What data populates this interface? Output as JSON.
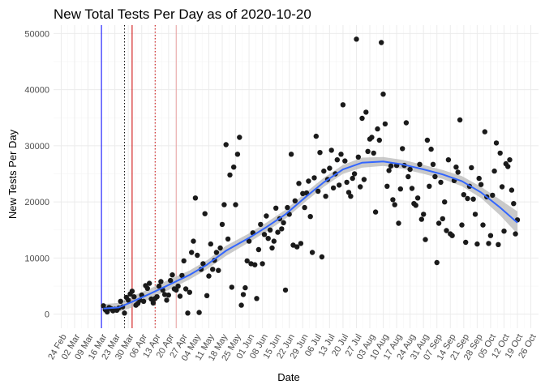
{
  "chart_data": {
    "type": "scatter",
    "title": "New Total Tests Per Day as of 2020-10-20",
    "xlabel": "Date",
    "ylabel": "New Tests Per Day",
    "xlim": [
      "2020-02-20",
      "2020-10-30"
    ],
    "ylim": [
      -2500,
      51500
    ],
    "grid": true,
    "legend": "none",
    "x_ticks": [
      {
        "date": "2020-02-24",
        "label": "24 Feb"
      },
      {
        "date": "2020-03-02",
        "label": "02 Mar"
      },
      {
        "date": "2020-03-09",
        "label": "09 Mar"
      },
      {
        "date": "2020-03-16",
        "label": "16 Mar"
      },
      {
        "date": "2020-03-23",
        "label": "23 Mar"
      },
      {
        "date": "2020-03-30",
        "label": "30 Mar"
      },
      {
        "date": "2020-04-06",
        "label": "06 Apr"
      },
      {
        "date": "2020-04-13",
        "label": "13 Apr"
      },
      {
        "date": "2020-04-20",
        "label": "20 Apr"
      },
      {
        "date": "2020-04-27",
        "label": "27 Apr"
      },
      {
        "date": "2020-05-04",
        "label": "04 May"
      },
      {
        "date": "2020-05-11",
        "label": "11 May"
      },
      {
        "date": "2020-05-18",
        "label": "18 May"
      },
      {
        "date": "2020-05-25",
        "label": "25 May"
      },
      {
        "date": "2020-06-01",
        "label": "01 Jun"
      },
      {
        "date": "2020-06-08",
        "label": "08 Jun"
      },
      {
        "date": "2020-06-15",
        "label": "15 Jun"
      },
      {
        "date": "2020-06-22",
        "label": "22 Jun"
      },
      {
        "date": "2020-06-29",
        "label": "29 Jun"
      },
      {
        "date": "2020-07-06",
        "label": "06 Jul"
      },
      {
        "date": "2020-07-13",
        "label": "13 Jul"
      },
      {
        "date": "2020-07-20",
        "label": "20 Jul"
      },
      {
        "date": "2020-07-27",
        "label": "27 Jul"
      },
      {
        "date": "2020-08-03",
        "label": "03 Aug"
      },
      {
        "date": "2020-08-10",
        "label": "10 Aug"
      },
      {
        "date": "2020-08-17",
        "label": "17 Aug"
      },
      {
        "date": "2020-08-24",
        "label": "24 Aug"
      },
      {
        "date": "2020-08-31",
        "label": "31 Aug"
      },
      {
        "date": "2020-09-07",
        "label": "07 Sep"
      },
      {
        "date": "2020-09-14",
        "label": "14 Sep"
      },
      {
        "date": "2020-09-21",
        "label": "21 Sep"
      },
      {
        "date": "2020-09-28",
        "label": "28 Sep"
      },
      {
        "date": "2020-10-05",
        "label": "05 Oct"
      },
      {
        "date": "2020-10-12",
        "label": "12 Oct"
      },
      {
        "date": "2020-10-19",
        "label": "19 Oct"
      },
      {
        "date": "2020-10-26",
        "label": "26 Oct"
      }
    ],
    "y_ticks": [
      {
        "value": 0,
        "label": "0"
      },
      {
        "value": 10000,
        "label": "10000"
      },
      {
        "value": 20000,
        "label": "20000"
      },
      {
        "value": 30000,
        "label": "30000"
      },
      {
        "value": 40000,
        "label": "40000"
      },
      {
        "value": 50000,
        "label": "50000"
      }
    ],
    "reference_lines": [
      {
        "date": "2020-03-16",
        "color": "#0000ff",
        "style": "solid"
      },
      {
        "date": "2020-03-28",
        "color": "#000000",
        "style": "dotted"
      },
      {
        "date": "2020-04-01",
        "color": "#cc0000",
        "style": "solid"
      },
      {
        "date": "2020-04-13",
        "color": "#cc0000",
        "style": "dotted"
      },
      {
        "date": "2020-04-24",
        "color": "#e8a0a0",
        "style": "solid"
      }
    ],
    "points": [
      [
        "2020-03-17",
        1500
      ],
      [
        "2020-03-18",
        800
      ],
      [
        "2020-03-19",
        400
      ],
      [
        "2020-03-20",
        1200
      ],
      [
        "2020-03-21",
        1000
      ],
      [
        "2020-03-22",
        600
      ],
      [
        "2020-03-23",
        900
      ],
      [
        "2020-03-24",
        700
      ],
      [
        "2020-03-25",
        1100
      ],
      [
        "2020-03-26",
        2300
      ],
      [
        "2020-03-27",
        1300
      ],
      [
        "2020-03-28",
        200
      ],
      [
        "2020-03-29",
        3000
      ],
      [
        "2020-03-30",
        2500
      ],
      [
        "2020-03-31",
        3600
      ],
      [
        "2020-04-01",
        4100
      ],
      [
        "2020-04-02",
        3100
      ],
      [
        "2020-04-03",
        1600
      ],
      [
        "2020-04-04",
        1900
      ],
      [
        "2020-04-05",
        2500
      ],
      [
        "2020-04-06",
        3400
      ],
      [
        "2020-04-07",
        2300
      ],
      [
        "2020-04-08",
        5100
      ],
      [
        "2020-04-09",
        4600
      ],
      [
        "2020-04-10",
        5500
      ],
      [
        "2020-04-11",
        2700
      ],
      [
        "2020-04-12",
        2000
      ],
      [
        "2020-04-13",
        2800
      ],
      [
        "2020-04-14",
        3100
      ],
      [
        "2020-04-15",
        5000
      ],
      [
        "2020-04-16",
        5800
      ],
      [
        "2020-04-17",
        4300
      ],
      [
        "2020-04-18",
        3500
      ],
      [
        "2020-04-19",
        2500
      ],
      [
        "2020-04-20",
        3400
      ],
      [
        "2020-04-21",
        6000
      ],
      [
        "2020-04-22",
        7000
      ],
      [
        "2020-04-23",
        4500
      ],
      [
        "2020-04-24",
        4300
      ],
      [
        "2020-04-25",
        5000
      ],
      [
        "2020-04-26",
        3200
      ],
      [
        "2020-04-27",
        6900
      ],
      [
        "2020-04-28",
        9500
      ],
      [
        "2020-04-29",
        4500
      ],
      [
        "2020-04-30",
        200
      ],
      [
        "2020-05-01",
        3900
      ],
      [
        "2020-05-02",
        11000
      ],
      [
        "2020-05-03",
        13000
      ],
      [
        "2020-05-04",
        20700
      ],
      [
        "2020-05-05",
        10500
      ],
      [
        "2020-05-06",
        300
      ],
      [
        "2020-05-07",
        8000
      ],
      [
        "2020-05-08",
        9000
      ],
      [
        "2020-05-09",
        17900
      ],
      [
        "2020-05-10",
        3300
      ],
      [
        "2020-05-11",
        6800
      ],
      [
        "2020-05-12",
        12500
      ],
      [
        "2020-05-13",
        8000
      ],
      [
        "2020-05-14",
        9600
      ],
      [
        "2020-05-15",
        11000
      ],
      [
        "2020-05-16",
        7800
      ],
      [
        "2020-05-17",
        11800
      ],
      [
        "2020-05-18",
        16000
      ],
      [
        "2020-05-19",
        19500
      ],
      [
        "2020-05-20",
        30200
      ],
      [
        "2020-05-21",
        13400
      ],
      [
        "2020-05-22",
        24800
      ],
      [
        "2020-05-23",
        4800
      ],
      [
        "2020-05-24",
        26200
      ],
      [
        "2020-05-25",
        19500
      ],
      [
        "2020-05-26",
        28500
      ],
      [
        "2020-05-27",
        31500
      ],
      [
        "2020-05-28",
        1600
      ],
      [
        "2020-05-29",
        3500
      ],
      [
        "2020-05-30",
        4700
      ],
      [
        "2020-05-31",
        9500
      ],
      [
        "2020-06-01",
        13000
      ],
      [
        "2020-06-02",
        9000
      ],
      [
        "2020-06-03",
        14500
      ],
      [
        "2020-06-04",
        8800
      ],
      [
        "2020-06-05",
        2800
      ],
      [
        "2020-06-06",
        11500
      ],
      [
        "2020-06-07",
        16000
      ],
      [
        "2020-06-08",
        9000
      ],
      [
        "2020-06-09",
        14200
      ],
      [
        "2020-06-10",
        17500
      ],
      [
        "2020-06-11",
        13500
      ],
      [
        "2020-06-12",
        15000
      ],
      [
        "2020-06-13",
        11800
      ],
      [
        "2020-06-14",
        13000
      ],
      [
        "2020-06-15",
        18900
      ],
      [
        "2020-06-16",
        14600
      ],
      [
        "2020-06-17",
        17000
      ],
      [
        "2020-06-18",
        15200
      ],
      [
        "2020-06-19",
        16300
      ],
      [
        "2020-06-20",
        4300
      ],
      [
        "2020-06-21",
        19000
      ],
      [
        "2020-06-22",
        17800
      ],
      [
        "2020-06-23",
        28500
      ],
      [
        "2020-06-24",
        12300
      ],
      [
        "2020-06-25",
        20200
      ],
      [
        "2020-06-26",
        12000
      ],
      [
        "2020-06-27",
        23300
      ],
      [
        "2020-06-28",
        12600
      ],
      [
        "2020-06-29",
        21500
      ],
      [
        "2020-06-30",
        19000
      ],
      [
        "2020-07-01",
        21600
      ],
      [
        "2020-07-02",
        23700
      ],
      [
        "2020-07-03",
        17400
      ],
      [
        "2020-07-04",
        11000
      ],
      [
        "2020-07-05",
        24300
      ],
      [
        "2020-07-06",
        31700
      ],
      [
        "2020-07-07",
        21900
      ],
      [
        "2020-07-08",
        28800
      ],
      [
        "2020-07-09",
        10200
      ],
      [
        "2020-07-10",
        25500
      ],
      [
        "2020-07-11",
        21000
      ],
      [
        "2020-07-12",
        24000
      ],
      [
        "2020-07-13",
        26000
      ],
      [
        "2020-07-14",
        29200
      ],
      [
        "2020-07-15",
        22500
      ],
      [
        "2020-07-16",
        25000
      ],
      [
        "2020-07-17",
        27500
      ],
      [
        "2020-07-18",
        23000
      ],
      [
        "2020-07-19",
        28500
      ],
      [
        "2020-07-20",
        37300
      ],
      [
        "2020-07-21",
        27300
      ],
      [
        "2020-07-22",
        23500
      ],
      [
        "2020-07-23",
        21700
      ],
      [
        "2020-07-24",
        21000
      ],
      [
        "2020-07-25",
        24200
      ],
      [
        "2020-07-26",
        25000
      ],
      [
        "2020-07-27",
        49000
      ],
      [
        "2020-07-28",
        28000
      ],
      [
        "2020-07-29",
        22700
      ],
      [
        "2020-07-30",
        34900
      ],
      [
        "2020-07-31",
        24000
      ],
      [
        "2020-08-01",
        36000
      ],
      [
        "2020-08-02",
        29000
      ],
      [
        "2020-08-03",
        31200
      ],
      [
        "2020-08-04",
        31500
      ],
      [
        "2020-08-05",
        28700
      ],
      [
        "2020-08-06",
        18200
      ],
      [
        "2020-08-07",
        33000
      ],
      [
        "2020-08-08",
        31000
      ],
      [
        "2020-08-09",
        48400
      ],
      [
        "2020-08-10",
        39200
      ],
      [
        "2020-08-11",
        33900
      ],
      [
        "2020-08-12",
        22800
      ],
      [
        "2020-08-13",
        25600
      ],
      [
        "2020-08-14",
        26400
      ],
      [
        "2020-08-15",
        20400
      ],
      [
        "2020-08-16",
        19500
      ],
      [
        "2020-08-17",
        26500
      ],
      [
        "2020-08-18",
        16200
      ],
      [
        "2020-08-19",
        22300
      ],
      [
        "2020-08-20",
        29500
      ],
      [
        "2020-08-21",
        26500
      ],
      [
        "2020-08-22",
        34100
      ],
      [
        "2020-08-23",
        24500
      ],
      [
        "2020-08-24",
        25800
      ],
      [
        "2020-08-25",
        22400
      ],
      [
        "2020-08-26",
        19700
      ],
      [
        "2020-08-27",
        19400
      ],
      [
        "2020-08-28",
        20700
      ],
      [
        "2020-08-29",
        26700
      ],
      [
        "2020-08-30",
        16900
      ],
      [
        "2020-08-31",
        17800
      ],
      [
        "2020-09-01",
        13300
      ],
      [
        "2020-09-02",
        31000
      ],
      [
        "2020-09-03",
        22800
      ],
      [
        "2020-09-04",
        29400
      ],
      [
        "2020-09-05",
        26700
      ],
      [
        "2020-09-06",
        24500
      ],
      [
        "2020-09-07",
        9200
      ],
      [
        "2020-09-08",
        16200
      ],
      [
        "2020-09-09",
        23500
      ],
      [
        "2020-09-10",
        17000
      ],
      [
        "2020-09-11",
        20000
      ],
      [
        "2020-09-12",
        14900
      ],
      [
        "2020-09-13",
        27500
      ],
      [
        "2020-09-14",
        14300
      ],
      [
        "2020-09-15",
        14000
      ],
      [
        "2020-09-16",
        23800
      ],
      [
        "2020-09-17",
        26200
      ],
      [
        "2020-09-18",
        25300
      ],
      [
        "2020-09-19",
        34600
      ],
      [
        "2020-09-20",
        15900
      ],
      [
        "2020-09-21",
        21300
      ],
      [
        "2020-09-22",
        12800
      ],
      [
        "2020-09-23",
        20600
      ],
      [
        "2020-09-24",
        22800
      ],
      [
        "2020-09-25",
        26100
      ],
      [
        "2020-09-26",
        20500
      ],
      [
        "2020-09-27",
        17800
      ],
      [
        "2020-09-28",
        12500
      ],
      [
        "2020-09-29",
        24200
      ],
      [
        "2020-09-30",
        23100
      ],
      [
        "2020-10-01",
        15900
      ],
      [
        "2020-10-02",
        32500
      ],
      [
        "2020-10-03",
        20900
      ],
      [
        "2020-10-04",
        12600
      ],
      [
        "2020-10-05",
        14000
      ],
      [
        "2020-10-06",
        21200
      ],
      [
        "2020-10-07",
        25500
      ],
      [
        "2020-10-08",
        30500
      ],
      [
        "2020-10-09",
        12400
      ],
      [
        "2020-10-10",
        28700
      ],
      [
        "2020-10-11",
        22700
      ],
      [
        "2020-10-12",
        14800
      ],
      [
        "2020-10-13",
        26800
      ],
      [
        "2020-10-14",
        26300
      ],
      [
        "2020-10-15",
        27500
      ],
      [
        "2020-10-16",
        22100
      ],
      [
        "2020-10-17",
        19700
      ],
      [
        "2020-10-18",
        14300
      ],
      [
        "2020-10-19",
        16800
      ]
    ],
    "smooth_fit": [
      [
        "2020-03-17",
        1000,
        200,
        1800
      ],
      [
        "2020-03-25",
        1200,
        400,
        2000
      ],
      [
        "2020-04-01",
        2200,
        1200,
        3200
      ],
      [
        "2020-04-10",
        3600,
        2700,
        4500
      ],
      [
        "2020-04-20",
        5200,
        4300,
        6100
      ],
      [
        "2020-05-01",
        7000,
        6200,
        7800
      ],
      [
        "2020-05-10",
        8800,
        8000,
        9600
      ],
      [
        "2020-05-20",
        11300,
        10400,
        12200
      ],
      [
        "2020-06-01",
        13600,
        12800,
        14400
      ],
      [
        "2020-06-10",
        15500,
        14700,
        16300
      ],
      [
        "2020-06-20",
        17800,
        17000,
        18600
      ],
      [
        "2020-07-01",
        21000,
        20200,
        21800
      ],
      [
        "2020-07-10",
        23500,
        22700,
        24300
      ],
      [
        "2020-07-20",
        25800,
        25000,
        26600
      ],
      [
        "2020-07-30",
        27000,
        26100,
        27900
      ],
      [
        "2020-08-10",
        27200,
        26400,
        28000
      ],
      [
        "2020-08-20",
        26700,
        25900,
        27500
      ],
      [
        "2020-08-31",
        25800,
        25000,
        26600
      ],
      [
        "2020-09-10",
        24900,
        24100,
        25700
      ],
      [
        "2020-09-20",
        23700,
        22800,
        24600
      ],
      [
        "2020-09-30",
        21700,
        20700,
        22700
      ],
      [
        "2020-10-10",
        19000,
        17600,
        20400
      ],
      [
        "2020-10-19",
        16300,
        14300,
        18300
      ]
    ],
    "colors": {
      "points": "#1a1a1a",
      "smooth_line": "#3366ff",
      "smooth_band": "#b8b8b8",
      "grid_major": "#ebebeb",
      "grid_minor": "#f5f5f5"
    }
  }
}
